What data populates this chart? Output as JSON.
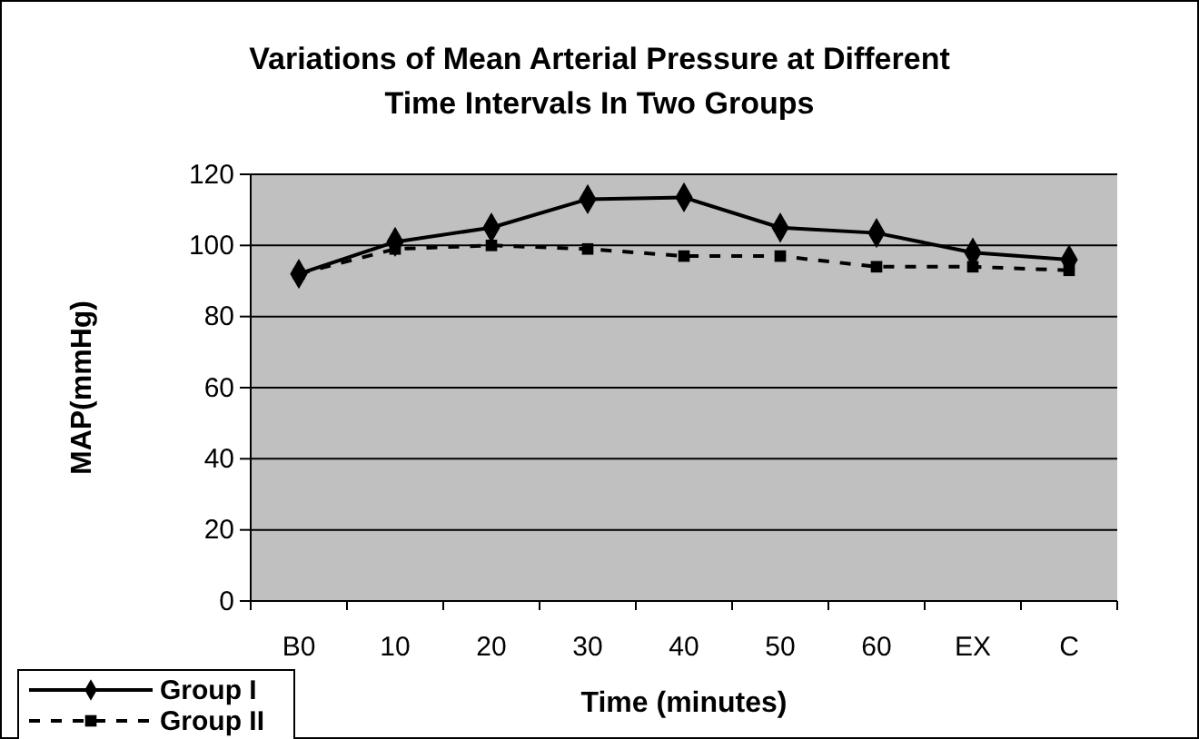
{
  "chart_data": {
    "type": "line",
    "title": "Variations of Mean Arterial Pressure at Different Time Intervals In Two Groups",
    "xlabel": "Time (minutes)",
    "ylabel": "MAP(mmHg)",
    "categories": [
      "B0",
      "10",
      "20",
      "30",
      "40",
      "50",
      "60",
      "EX",
      "C"
    ],
    "series": [
      {
        "name": "Group I",
        "color": "#000000",
        "marker": "diamond",
        "line_style": "solid",
        "values": [
          92,
          101,
          105,
          113,
          113.5,
          105,
          103.5,
          98,
          96
        ]
      },
      {
        "name": "Group II",
        "color": "#000000",
        "marker": "square",
        "line_style": "dashed",
        "values": [
          92,
          99,
          100,
          99,
          97,
          97,
          94,
          94,
          93
        ]
      }
    ],
    "ylim": [
      0,
      120
    ],
    "yticks": [
      0,
      20,
      40,
      60,
      80,
      100,
      120
    ],
    "grid": "y",
    "legend": "bottom left"
  }
}
